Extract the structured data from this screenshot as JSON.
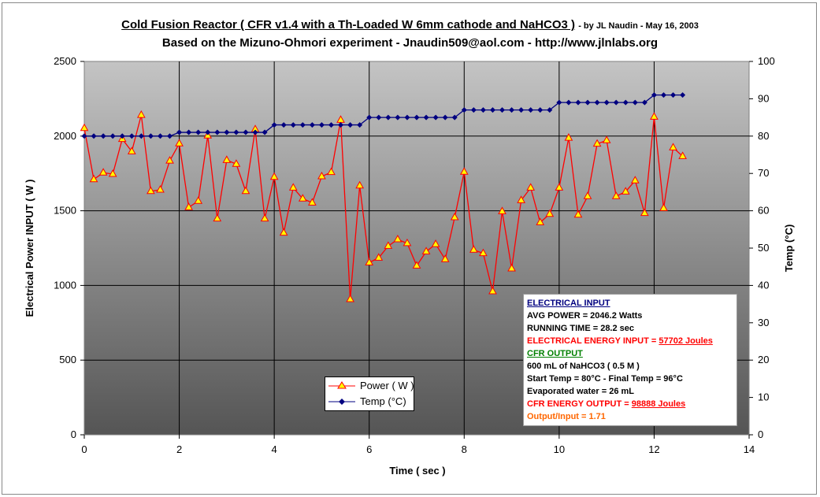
{
  "chart_data": {
    "type": "line",
    "title": "Cold Fusion Reactor ( CFR v1.4 with a Th-Loaded W 6mm cathode and NaHCO3 )",
    "title_suffix": "- by JL Naudin - May 16, 2003",
    "subtitle": "Based on the Mizuno-Ohmori experiment - Jnaudin509@aol.com - http://www.jlnlabs.org",
    "xlabel": "Time ( sec )",
    "ylabel": "Electrical Power INPUT ( W )",
    "y2label": "Temp (°C)",
    "xlim": [
      0,
      14
    ],
    "ylim": [
      0,
      2500
    ],
    "y2lim": [
      0,
      100
    ],
    "xticks": [
      "0",
      "2",
      "4",
      "6",
      "8",
      "10",
      "12",
      "14"
    ],
    "yticks": [
      "0",
      "500",
      "1000",
      "1500",
      "2000",
      "2500"
    ],
    "y2ticks": [
      "0",
      "10",
      "20",
      "30",
      "40",
      "50",
      "60",
      "70",
      "80",
      "90",
      "100"
    ],
    "grid": true,
    "legend_position": "bottom-center",
    "x_step": 0.2,
    "series": [
      {
        "name": "Power ( W )",
        "axis": "left",
        "color": "#ff0000",
        "values": [
          2053,
          1710,
          1755,
          1746,
          1980,
          1897,
          2141,
          1631,
          1640,
          1835,
          1950,
          1523,
          1565,
          2003,
          1447,
          1839,
          1813,
          1631,
          2045,
          1447,
          1726,
          1352,
          1654,
          1581,
          1554,
          1730,
          1758,
          2108,
          907,
          1668,
          1153,
          1185,
          1264,
          1308,
          1282,
          1132,
          1227,
          1276,
          1175,
          1456,
          1760,
          1238,
          1215,
          960,
          1496,
          1113,
          1570,
          1654,
          1422,
          1478,
          1654,
          1988,
          1473,
          1597,
          1948,
          1971,
          1597,
          1628,
          1702,
          1484,
          2129,
          1517,
          1923,
          1865
        ]
      },
      {
        "name": "Temp (°C)",
        "axis": "right",
        "color": "#000080",
        "values": [
          80,
          80,
          80,
          80,
          80,
          80,
          80,
          80,
          80,
          80,
          81,
          81,
          81,
          81,
          81,
          81,
          81,
          81,
          81,
          81,
          83,
          83,
          83,
          83,
          83,
          83,
          83,
          83,
          83,
          83,
          85,
          85,
          85,
          85,
          85,
          85,
          85,
          85,
          85,
          85,
          87,
          87,
          87,
          87,
          87,
          87,
          87,
          87,
          87,
          87,
          89,
          89,
          89,
          89,
          89,
          89,
          89,
          89,
          89,
          89,
          91,
          91,
          91,
          91
        ]
      }
    ]
  },
  "info": {
    "h1": "ELECTRICAL INPUT",
    "l1": "AVG POWER = 2046.2 Watts",
    "l2": "RUNNING TIME = 28.2 sec",
    "l3a": "ELECTRICAL  ENERGY INPUT = ",
    "l3b": "57702 Joules",
    "h2": "CFR OUTPUT",
    "l4": "600 mL of NaHCO3 ( 0.5 M )",
    "l5": "Start Temp = 80°C - Final Temp = 96°C",
    "l6": "Evaporated water = 26 mL",
    "l7a": "CFR ENERGY OUTPUT = ",
    "l7b": "98888 Joules",
    "l8": "Output/Input = 1.71"
  }
}
